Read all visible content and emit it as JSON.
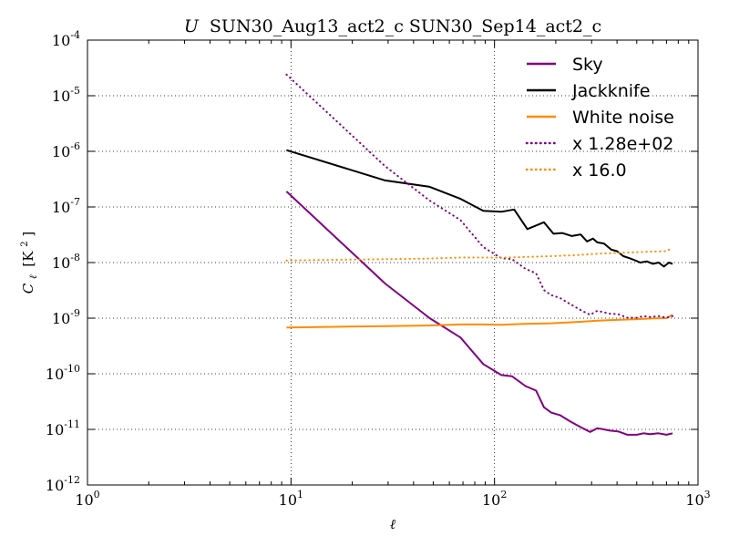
{
  "chart_data": {
    "type": "line",
    "title": "U SUN30_Aug13_act2_c SUN30_Sep14_act2_c",
    "title_italic_prefix": "U",
    "title_rest": "SUN30_Aug13_act2_c SUN30_Sep14_act2_c",
    "xlabel": "ℓ",
    "ylabel": "Cℓ [K²]",
    "ylabel_main": "C",
    "ylabel_sub": "ℓ",
    "ylabel_unit": "[K",
    "ylabel_unit_sup": "2",
    "ylabel_unit_close": "]",
    "xscale": "log",
    "yscale": "log",
    "xlim": [
      1,
      1000
    ],
    "ylim": [
      1e-12,
      0.0001
    ],
    "grid": true,
    "legend_position": "top-right",
    "x_ticks": [
      {
        "value": 1,
        "base": "10",
        "exp": "0"
      },
      {
        "value": 10,
        "base": "10",
        "exp": "1"
      },
      {
        "value": 100,
        "base": "10",
        "exp": "2"
      },
      {
        "value": 1000,
        "base": "10",
        "exp": "3"
      }
    ],
    "y_ticks": [
      {
        "value": 1e-12,
        "base": "10",
        "exp": "-12"
      },
      {
        "value": 1e-11,
        "base": "10",
        "exp": "-11"
      },
      {
        "value": 1e-10,
        "base": "10",
        "exp": "-10"
      },
      {
        "value": 1e-09,
        "base": "10",
        "exp": "-9"
      },
      {
        "value": 1e-08,
        "base": "10",
        "exp": "-8"
      },
      {
        "value": 1e-07,
        "base": "10",
        "exp": "-7"
      },
      {
        "value": 1e-06,
        "base": "10",
        "exp": "-6"
      },
      {
        "value": 1e-05,
        "base": "10",
        "exp": "-5"
      },
      {
        "value": 0.0001,
        "base": "10",
        "exp": "-4"
      }
    ],
    "series": [
      {
        "name": "Sky",
        "color": "#800080",
        "style": "solid",
        "x": [
          9.5,
          29,
          48,
          68,
          88,
          108,
          122,
          142,
          160,
          175,
          190,
          210,
          235,
          265,
          295,
          320,
          345,
          370,
          405,
          450,
          500,
          540,
          580,
          640,
          700,
          750
        ],
        "y": [
          1.9e-07,
          4.2e-09,
          1e-09,
          4.5e-10,
          1.5e-10,
          9.5e-11,
          9e-11,
          6e-11,
          5e-11,
          2.5e-11,
          2e-11,
          1.8e-11,
          1.4e-11,
          1.1e-11,
          9e-12,
          1.05e-11,
          1e-11,
          9.5e-12,
          9.2e-12,
          8e-12,
          8e-12,
          8.5e-12,
          8.2e-12,
          8.5e-12,
          8e-12,
          8.5e-12
        ]
      },
      {
        "name": "Jackknife",
        "color": "#000000",
        "style": "solid",
        "x": [
          9.5,
          29,
          48,
          68,
          88,
          108,
          125,
          145,
          175,
          195,
          215,
          240,
          265,
          285,
          305,
          320,
          345,
          375,
          400,
          430,
          460,
          490,
          520,
          560,
          600,
          640,
          680,
          720,
          750
        ],
        "y": [
          1.05e-06,
          3e-07,
          2.3e-07,
          1.4e-07,
          8.5e-08,
          8.2e-08,
          9e-08,
          4e-08,
          5.3e-08,
          3.3e-08,
          3.4e-08,
          3e-08,
          3.2e-08,
          2.4e-08,
          2.7e-08,
          2.3e-08,
          2.2e-08,
          1.7e-08,
          1.6e-08,
          1.3e-08,
          1.2e-08,
          1.1e-08,
          1e-08,
          1.05e-08,
          9.5e-09,
          1e-08,
          8.5e-09,
          1e-08,
          9.5e-09
        ]
      },
      {
        "name": "White noise",
        "color": "#ff8c00",
        "style": "solid",
        "x": [
          9.5,
          29,
          48,
          68,
          88,
          108,
          140,
          190,
          250,
          320,
          400,
          500,
          600,
          700,
          750
        ],
        "y": [
          6.8e-10,
          7.2e-10,
          7.4e-10,
          7.7e-10,
          7.7e-10,
          7.6e-10,
          7.9e-10,
          8.1e-10,
          8.5e-10,
          9e-10,
          9.3e-10,
          9.6e-10,
          9.9e-10,
          1e-09,
          1.15e-09
        ]
      },
      {
        "name": "x 1.28e+02",
        "color": "#800080",
        "style": "dotted",
        "x": [
          9.5,
          29,
          48,
          68,
          88,
          108,
          122,
          142,
          160,
          175,
          190,
          210,
          235,
          265,
          295,
          320,
          345,
          370,
          405,
          450,
          500,
          540,
          580,
          640,
          700,
          750
        ],
        "y": [
          2.4e-05,
          5.4e-07,
          1.3e-07,
          5.8e-08,
          1.9e-08,
          1.2e-08,
          1.15e-08,
          7.7e-09,
          6.4e-09,
          3.2e-09,
          2.6e-09,
          2.3e-09,
          1.8e-09,
          1.4e-09,
          1.15e-09,
          1.35e-09,
          1.28e-09,
          1.2e-09,
          1.18e-09,
          1.02e-09,
          1.02e-09,
          1.09e-09,
          1.05e-09,
          1.09e-09,
          1.02e-09,
          1.09e-09
        ]
      },
      {
        "name": "x 16.0",
        "color": "#ff8c00",
        "style": "dotted",
        "x": [
          9.5,
          29,
          48,
          68,
          88,
          108,
          140,
          190,
          250,
          320,
          400,
          500,
          600,
          700,
          750
        ],
        "y": [
          1.09e-08,
          1.15e-08,
          1.18e-08,
          1.23e-08,
          1.23e-08,
          1.22e-08,
          1.26e-08,
          1.3e-08,
          1.36e-08,
          1.44e-08,
          1.49e-08,
          1.54e-08,
          1.58e-08,
          1.6e-08,
          1.84e-08
        ]
      }
    ]
  }
}
